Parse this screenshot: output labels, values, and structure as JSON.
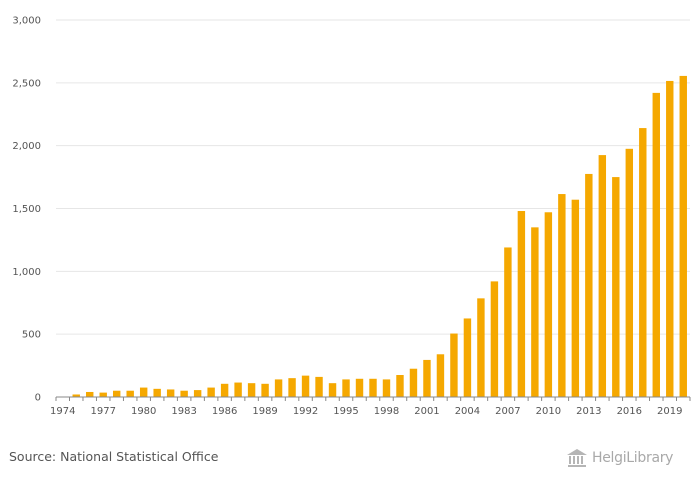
{
  "chart_data": {
    "type": "bar",
    "x": [
      1974,
      1975,
      1976,
      1977,
      1978,
      1979,
      1980,
      1981,
      1982,
      1983,
      1984,
      1985,
      1986,
      1987,
      1988,
      1989,
      1990,
      1991,
      1992,
      1993,
      1994,
      1995,
      1996,
      1997,
      1998,
      1999,
      2000,
      2001,
      2002,
      2003,
      2004,
      2005,
      2006,
      2007,
      2008,
      2009,
      2010,
      2011,
      2012,
      2013,
      2014,
      2015,
      2016,
      2017,
      2018,
      2019,
      2020
    ],
    "values": [
      0,
      20,
      40,
      35,
      50,
      50,
      75,
      65,
      60,
      50,
      55,
      75,
      105,
      115,
      110,
      105,
      140,
      150,
      170,
      160,
      110,
      140,
      145,
      145,
      140,
      175,
      225,
      295,
      340,
      505,
      625,
      785,
      920,
      1190,
      1480,
      1350,
      1470,
      1615,
      1570,
      1775,
      1925,
      1750,
      1975,
      2140,
      2420,
      2515,
      2555
    ],
    "x_tick_labels": [
      "1974",
      "1977",
      "1980",
      "1983",
      "1986",
      "1989",
      "1992",
      "1995",
      "1998",
      "2001",
      "2004",
      "2007",
      "2010",
      "2013",
      "2016",
      "2019"
    ],
    "y_ticks": [
      0,
      500,
      1000,
      1500,
      2000,
      2500,
      3000
    ],
    "y_tick_labels": [
      "0",
      "500",
      "1,000",
      "1,500",
      "2,000",
      "2,500",
      "3,000"
    ],
    "ylim": [
      0,
      3000
    ],
    "grid": true,
    "legend": "none",
    "bar_color": "#f5a800",
    "grid_color": "#e6e6e6",
    "title": "",
    "xlabel": "",
    "ylabel": ""
  },
  "footer": {
    "source": "Source: National Statistical Office",
    "brand": "HelgiLibrary"
  }
}
